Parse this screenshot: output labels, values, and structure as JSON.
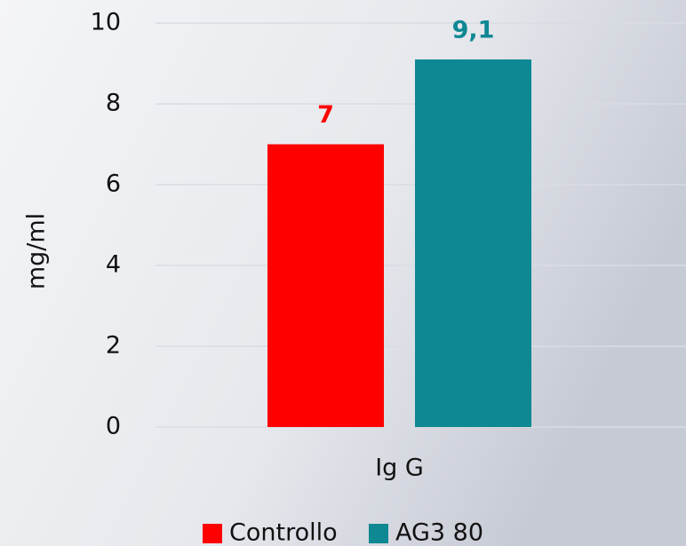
{
  "chart_data": {
    "type": "bar",
    "categories": [
      "Ig G"
    ],
    "series": [
      {
        "name": "Controllo",
        "color": "#ff0000",
        "values": [
          7
        ],
        "value_labels": [
          "7"
        ]
      },
      {
        "name": "AG3 80",
        "color": "#0e8893",
        "values": [
          9.1
        ],
        "value_labels": [
          "9,1"
        ]
      }
    ],
    "y_label": "mg/ml",
    "ylim": [
      0,
      10
    ],
    "yticks": [
      0,
      2,
      4,
      6,
      8,
      10
    ],
    "grid": true,
    "legend": "bottom"
  }
}
